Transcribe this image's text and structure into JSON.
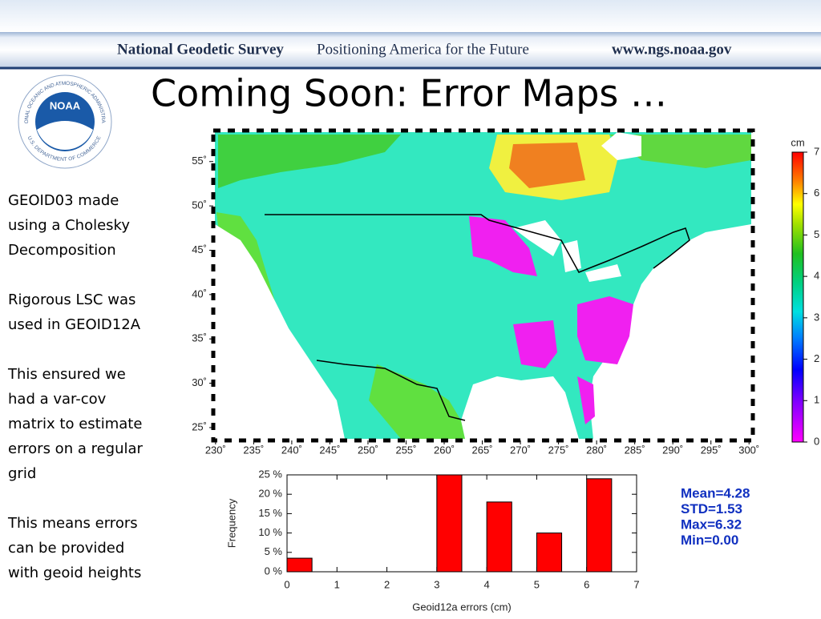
{
  "header": {
    "org": "National Geodetic Survey",
    "tagline": "Positioning America for the Future",
    "url": "www.ngs.noaa.gov"
  },
  "logo": {
    "name": "NOAA",
    "top_ring": "NATIONAL OCEANIC AND ATMOSPHERIC ADMINISTRATION",
    "bottom_ring": "U.S. DEPARTMENT OF COMMERCE"
  },
  "title": "Coming Soon: Error Maps …",
  "paragraphs": [
    [
      "GEOID03 made",
      "using a Cholesky",
      "Decomposition"
    ],
    [
      "Rigorous LSC was",
      "used in GEOID12A"
    ],
    [
      "This ensured we",
      "had a var-cov",
      "matrix to estimate",
      "errors on a regular",
      "grid"
    ],
    [
      "This means errors",
      "can be provided",
      "with geoid heights"
    ]
  ],
  "map": {
    "xlim": [
      229.7,
      300.5
    ],
    "ylim": [
      23.55,
      58.5
    ],
    "xticks": [
      {
        "value": 230,
        "label": "230˚"
      },
      {
        "value": 235,
        "label": "235˚"
      },
      {
        "value": 240,
        "label": "240˚"
      },
      {
        "value": 245,
        "label": "245˚"
      },
      {
        "value": 250,
        "label": "250˚"
      },
      {
        "value": 255,
        "label": "255˚"
      },
      {
        "value": 260,
        "label": "260˚"
      },
      {
        "value": 265,
        "label": "265˚"
      },
      {
        "value": 270,
        "label": "270˚"
      },
      {
        "value": 275,
        "label": "275˚"
      },
      {
        "value": 280,
        "label": "280˚"
      },
      {
        "value": 285,
        "label": "285˚"
      },
      {
        "value": 290,
        "label": "290˚"
      },
      {
        "value": 295,
        "label": "295˚"
      },
      {
        "value": 300,
        "label": "300˚"
      }
    ],
    "yticks": [
      {
        "value": 25,
        "label": "25˚"
      },
      {
        "value": 30,
        "label": "30˚"
      },
      {
        "value": 35,
        "label": "35˚"
      },
      {
        "value": 40,
        "label": "40˚"
      },
      {
        "value": 45,
        "label": "45˚"
      },
      {
        "value": 50,
        "label": "50˚"
      },
      {
        "value": 55,
        "label": "55˚"
      }
    ],
    "colorbar": {
      "unit": "cm",
      "lim": [
        0,
        7
      ],
      "ticks": [
        0,
        1,
        2,
        3,
        4,
        5,
        6,
        7
      ]
    }
  },
  "chart_data": {
    "type": "histogram",
    "xlabel": "Geoid12a errors (cm)",
    "ylabel": "Frequency",
    "bins": [
      0,
      0.5,
      1,
      1.5,
      2,
      2.5,
      3,
      3.5,
      4,
      4.5,
      5,
      5.5,
      6,
      6.5,
      7
    ],
    "values": [
      3.5,
      0,
      0,
      0,
      0,
      0,
      25,
      0,
      18,
      0,
      10,
      0,
      24,
      0
    ],
    "color": "#ff0000",
    "xlim": [
      0,
      7
    ],
    "xticks": [
      0,
      1,
      2,
      3,
      4,
      5,
      6,
      7
    ],
    "ylim": [
      0,
      25
    ],
    "yticks": [
      {
        "value": 0,
        "label": "0 %"
      },
      {
        "value": 5,
        "label": "5 %"
      },
      {
        "value": 10,
        "label": "10 %"
      },
      {
        "value": 15,
        "label": "15 %"
      },
      {
        "value": 20,
        "label": "20 %"
      },
      {
        "value": 25,
        "label": "25 %"
      }
    ]
  },
  "stats": [
    "Mean=4.28",
    "STD=1.53",
    "Max=6.32",
    "Min=0.00"
  ]
}
